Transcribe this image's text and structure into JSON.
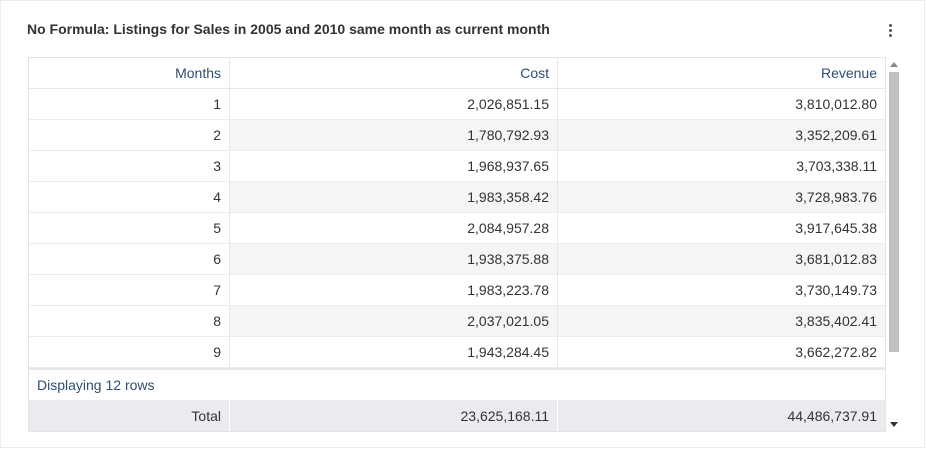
{
  "card": {
    "title": "No Formula: Listings for Sales in 2005 and 2010 same month as current month"
  },
  "table": {
    "columns": [
      "Months",
      "Cost",
      "Revenue"
    ],
    "rows": [
      {
        "month": "1",
        "cost": "2,026,851.15",
        "revenue": "3,810,012.80"
      },
      {
        "month": "2",
        "cost": "1,780,792.93",
        "revenue": "3,352,209.61"
      },
      {
        "month": "3",
        "cost": "1,968,937.65",
        "revenue": "3,703,338.11"
      },
      {
        "month": "4",
        "cost": "1,983,358.42",
        "revenue": "3,728,983.76"
      },
      {
        "month": "5",
        "cost": "2,084,957.28",
        "revenue": "3,917,645.38"
      },
      {
        "month": "6",
        "cost": "1,938,375.88",
        "revenue": "3,681,012.83"
      },
      {
        "month": "7",
        "cost": "1,983,223.78",
        "revenue": "3,730,149.73"
      },
      {
        "month": "8",
        "cost": "2,037,021.05",
        "revenue": "3,835,402.41"
      },
      {
        "month": "9",
        "cost": "1,943,284.45",
        "revenue": "3,662,272.82"
      }
    ],
    "row_count_text": "Displaying 12 rows",
    "total": {
      "label": "Total",
      "cost": "23,625,168.11",
      "revenue": "44,486,737.91"
    }
  },
  "icons": {
    "menu": "kebab-menu-icon",
    "scroll_up": "arrow-up-icon",
    "scroll_down": "arrow-down-icon"
  },
  "colors": {
    "header_text": "#2f4e72",
    "alt_row": "#f4f5f7",
    "total_row": "#eaebee"
  }
}
